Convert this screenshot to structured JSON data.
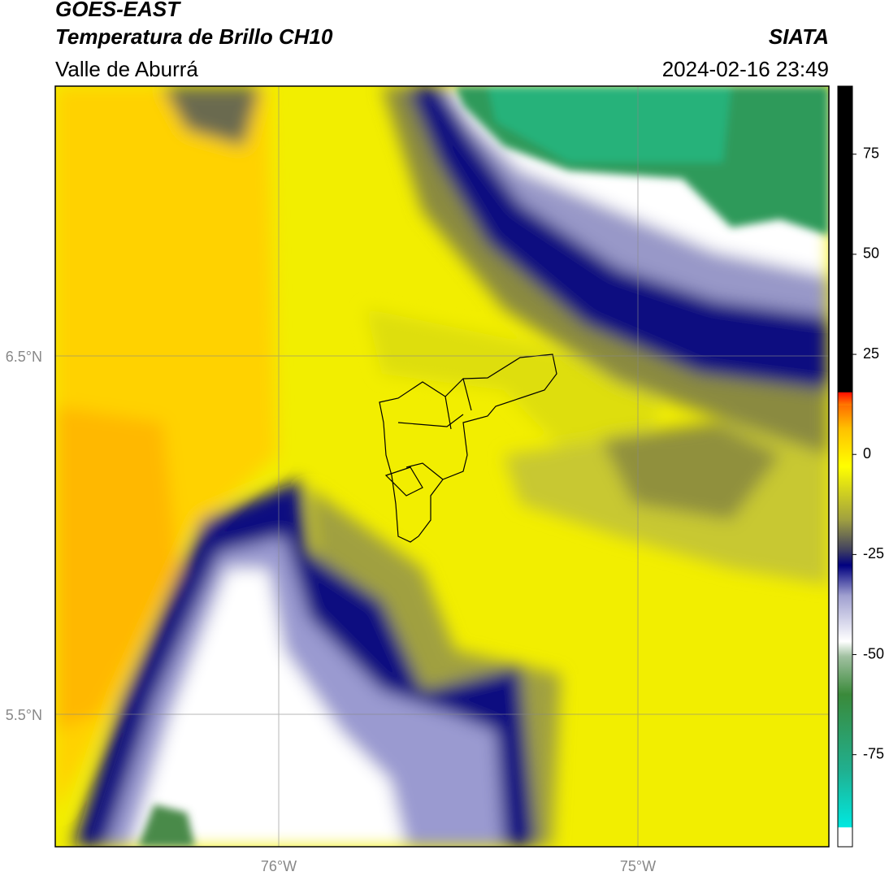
{
  "header": {
    "satellite": "GOES-EAST",
    "product": "Temperatura de Brillo CH10",
    "region": "Valle de Aburrá",
    "agency": "SIATA",
    "datetime": "2024-02-16 23:49"
  },
  "map": {
    "lat_labels": [
      "6.5°N",
      "5.5°N"
    ],
    "lon_labels": [
      "76°W",
      "75°W"
    ]
  },
  "colorbar": {
    "range": [
      -98,
      92
    ],
    "ticks": [
      75,
      50,
      25,
      0,
      -25,
      -50,
      -75
    ]
  }
}
